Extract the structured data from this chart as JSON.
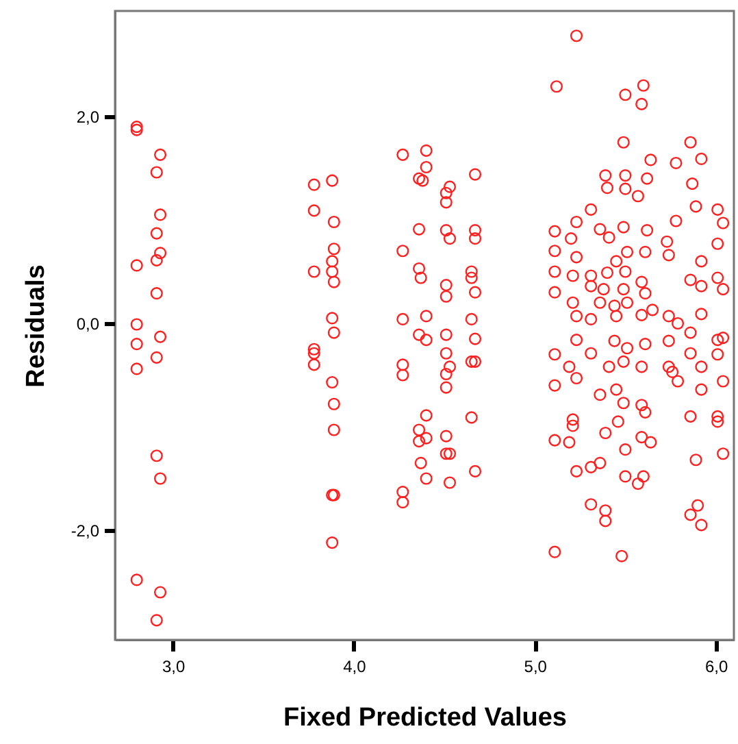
{
  "chart_data": {
    "type": "scatter",
    "xlabel": "Fixed Predicted Values",
    "ylabel": "Residuals",
    "xlim": [
      2.68,
      6.1
    ],
    "ylim": [
      -3.06,
      3.02
    ],
    "xticks": [
      {
        "value": 3,
        "label": "3,0"
      },
      {
        "value": 4,
        "label": "4,0"
      },
      {
        "value": 5,
        "label": "5,0"
      },
      {
        "value": 6,
        "label": "6,0"
      }
    ],
    "yticks": [
      {
        "value": -2,
        "label": "-2,0"
      },
      {
        "value": 0,
        "label": "0,0"
      },
      {
        "value": 2,
        "label": "2,0"
      }
    ],
    "grid": false,
    "marker": "circle",
    "series": [
      {
        "color": "#ff2020",
        "x": [
          2.8,
          2.8,
          2.93,
          2.91,
          2.93,
          2.91,
          2.93,
          2.91,
          2.8,
          2.91,
          2.8,
          2.8,
          2.93,
          2.91,
          2.8,
          2.91,
          2.93,
          2.8,
          2.93,
          2.91,
          3.78,
          3.88,
          3.78,
          3.89,
          3.89,
          3.88,
          3.78,
          3.88,
          3.89,
          3.88,
          3.89,
          3.78,
          3.78,
          3.78,
          3.88,
          3.89,
          3.89,
          3.88,
          3.89,
          3.88,
          4.27,
          4.4,
          4.4,
          4.36,
          4.38,
          4.53,
          4.51,
          4.51,
          4.67,
          4.36,
          4.51,
          4.53,
          4.67,
          4.67,
          4.27,
          4.36,
          4.37,
          4.51,
          4.51,
          4.65,
          4.65,
          4.67,
          4.27,
          4.4,
          4.36,
          4.4,
          4.51,
          4.65,
          4.67,
          4.51,
          4.53,
          4.27,
          4.65,
          4.27,
          4.51,
          4.51,
          4.67,
          4.4,
          4.65,
          4.36,
          4.36,
          4.4,
          4.51,
          4.51,
          4.53,
          4.37,
          4.4,
          4.53,
          4.67,
          4.27,
          4.27,
          5.23,
          5.12,
          5.6,
          5.5,
          5.59,
          5.49,
          5.64,
          5.39,
          5.5,
          5.62,
          5.4,
          5.5,
          5.57,
          5.78,
          5.86,
          5.92,
          5.87,
          5.89,
          6.01,
          5.31,
          5.23,
          5.78,
          6.04,
          5.11,
          5.36,
          5.49,
          5.62,
          5.2,
          5.41,
          5.73,
          6.01,
          5.11,
          5.51,
          5.61,
          5.74,
          5.23,
          5.45,
          5.11,
          5.21,
          5.31,
          5.4,
          5.5,
          5.92,
          5.86,
          6.01,
          6.04,
          5.11,
          5.31,
          5.38,
          5.49,
          5.59,
          5.61,
          5.92,
          5.21,
          5.36,
          5.44,
          5.51,
          5.65,
          5.74,
          5.92,
          5.23,
          5.31,
          5.45,
          5.59,
          5.79,
          5.86,
          6.01,
          6.04,
          5.11,
          5.23,
          5.31,
          5.44,
          5.51,
          5.61,
          5.74,
          5.86,
          6.01,
          5.19,
          5.41,
          5.49,
          5.59,
          5.74,
          5.92,
          5.76,
          5.11,
          5.23,
          5.36,
          5.45,
          5.49,
          5.59,
          5.61,
          5.79,
          5.92,
          6.04,
          5.21,
          5.21,
          5.46,
          5.39,
          5.59,
          5.64,
          5.86,
          6.01,
          6.01,
          5.11,
          5.19,
          5.5,
          5.89,
          6.04,
          5.23,
          5.31,
          5.36,
          5.5,
          5.6,
          5.57,
          5.31,
          5.39,
          5.39,
          5.86,
          5.9,
          5.92,
          5.11,
          5.48
        ],
        "values": [
          1.87,
          1.9,
          1.63,
          1.46,
          1.05,
          0.87,
          0.68,
          0.61,
          0.56,
          0.29,
          -0.01,
          -0.2,
          -0.13,
          -0.33,
          -0.44,
          -1.28,
          -1.5,
          -2.48,
          -2.6,
          -2.87,
          1.34,
          1.38,
          1.09,
          0.98,
          0.72,
          0.6,
          0.5,
          0.5,
          0.4,
          0.05,
          -0.09,
          -0.25,
          -0.29,
          -0.4,
          -0.57,
          -0.78,
          -1.03,
          -1.66,
          -1.66,
          -2.12,
          1.63,
          1.67,
          1.51,
          1.4,
          1.38,
          1.32,
          1.26,
          1.17,
          1.44,
          0.91,
          0.9,
          0.82,
          0.9,
          0.82,
          0.7,
          0.53,
          0.44,
          0.37,
          0.26,
          0.5,
          0.44,
          0.3,
          0.04,
          0.07,
          -0.11,
          -0.16,
          -0.11,
          0.04,
          -0.15,
          -0.29,
          -0.42,
          -0.4,
          -0.37,
          -0.5,
          -0.49,
          -0.62,
          -0.37,
          -0.89,
          -0.91,
          -1.03,
          -1.14,
          -1.11,
          -1.09,
          -1.26,
          -1.26,
          -1.35,
          -1.5,
          -1.54,
          -1.43,
          -1.63,
          -1.73,
          2.78,
          2.29,
          2.3,
          2.21,
          2.12,
          1.75,
          1.58,
          1.43,
          1.43,
          1.4,
          1.31,
          1.3,
          1.23,
          1.55,
          1.75,
          1.59,
          1.35,
          1.13,
          1.1,
          1.1,
          0.98,
          0.99,
          0.97,
          0.89,
          0.91,
          0.93,
          0.9,
          0.82,
          0.83,
          0.79,
          0.77,
          0.7,
          0.69,
          0.69,
          0.66,
          0.64,
          0.6,
          0.5,
          0.46,
          0.46,
          0.49,
          0.5,
          0.6,
          0.42,
          0.44,
          0.33,
          0.3,
          0.36,
          0.33,
          0.33,
          0.4,
          0.29,
          0.36,
          0.2,
          0.2,
          0.17,
          0.2,
          0.13,
          0.07,
          0.09,
          0.07,
          0.04,
          0.07,
          0.08,
          0.0,
          -0.09,
          -0.16,
          -0.14,
          -0.3,
          -0.16,
          -0.29,
          -0.17,
          -0.24,
          -0.2,
          -0.17,
          -0.29,
          -0.3,
          -0.42,
          -0.42,
          -0.37,
          -0.42,
          -0.42,
          -0.42,
          -0.47,
          -0.6,
          -0.53,
          -0.69,
          -0.64,
          -0.77,
          -0.79,
          -0.86,
          -0.56,
          -0.64,
          -0.56,
          -0.93,
          -0.99,
          -0.95,
          -1.06,
          -1.1,
          -1.15,
          -0.9,
          -0.9,
          -0.95,
          -1.13,
          -1.15,
          -1.22,
          -1.32,
          -1.26,
          -1.43,
          -1.39,
          -1.35,
          -1.48,
          -1.48,
          -1.55,
          -1.75,
          -1.81,
          -1.91,
          -1.85,
          -1.76,
          -1.95,
          -2.21,
          -2.25
        ]
      }
    ]
  }
}
